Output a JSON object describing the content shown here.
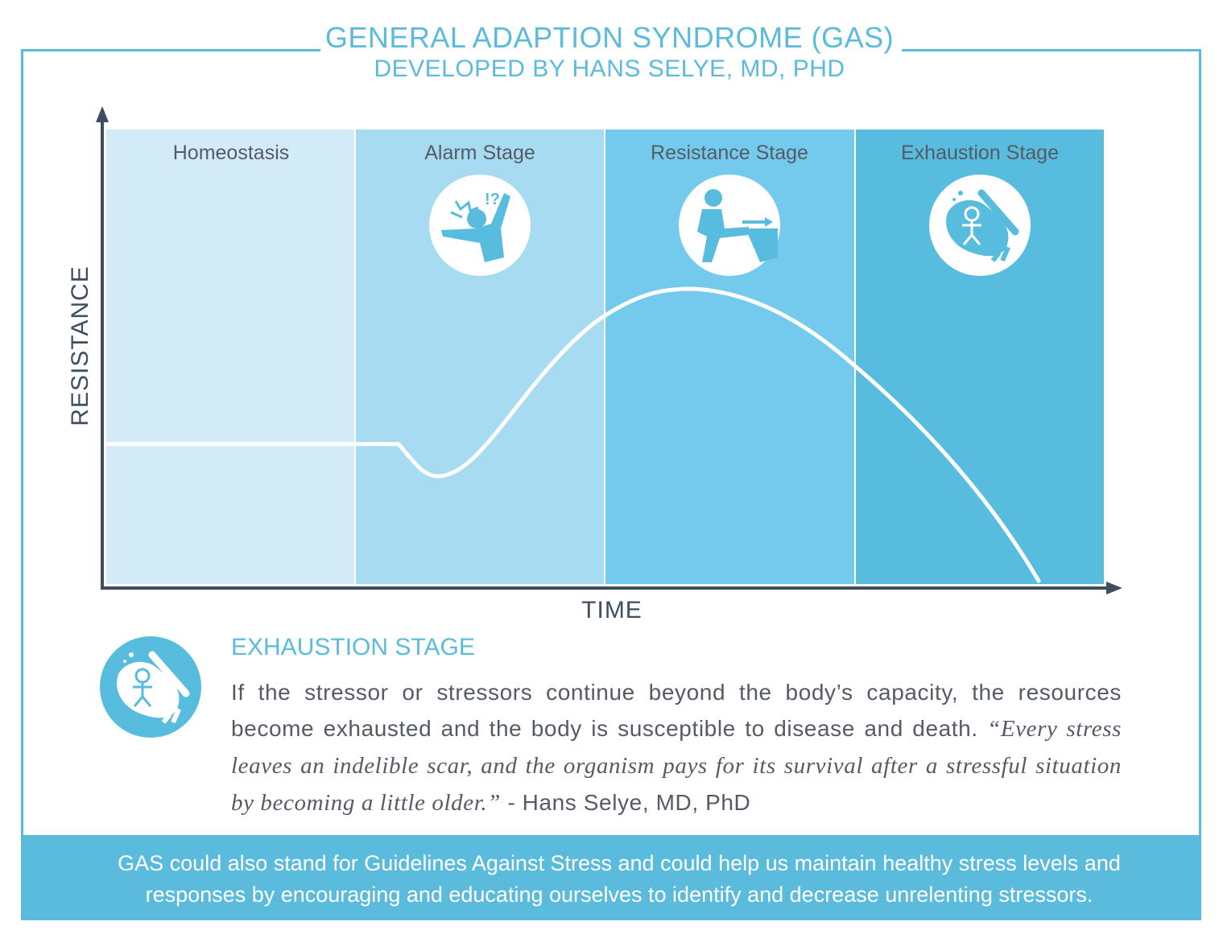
{
  "header": {
    "title": "GENERAL ADAPTION SYNDROME (GAS)",
    "subtitle": "DEVELOPED BY HANS SELYE, MD, PHD"
  },
  "diagram": {
    "y_axis_label": "RESISTANCE",
    "x_axis_label": "TIME",
    "stages": [
      {
        "label": "Homeostasis",
        "color": "#d3ebf7",
        "icon": ""
      },
      {
        "label": "Alarm Stage",
        "color": "#a6dbf2",
        "icon": "startled-person-icon"
      },
      {
        "label": "Resistance Stage",
        "color": "#74caed",
        "icon": "person-pushing-icon"
      },
      {
        "label": "Exhaustion Stage",
        "color": "#58bcdf",
        "icon": "exhausted-figure-icon"
      }
    ],
    "curve_color": "#ffffff",
    "axis_color": "#3f4d63"
  },
  "description": {
    "icon": "exhausted-figure-icon",
    "heading": "EXHAUSTION STAGE",
    "text_plain": "If the stressor or stressors continue beyond the body’s capacity, the resources become exhausted and the body is susceptible to disease and death. ",
    "quote": "“Every stress leaves an indelible scar, and the organism pays for its survival after a stressful situation by becoming a little older.”",
    "attribution": " - Hans Selye, MD, PhD"
  },
  "footer": {
    "text": "GAS could also stand for Guidelines Against Stress and could help us maintain healthy stress levels and responses by encouraging and educating ourselves to identify and decrease unrelenting stressors."
  },
  "colors": {
    "accent": "#5bbbdd",
    "text": "#555b66"
  }
}
